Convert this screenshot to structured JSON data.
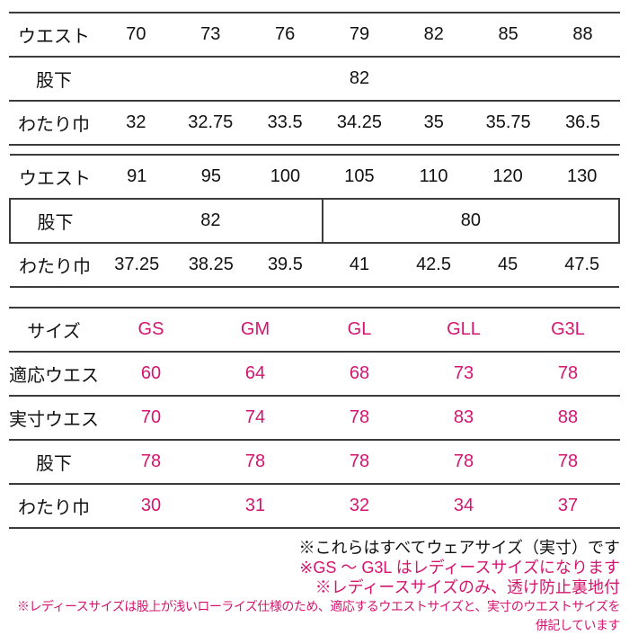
{
  "colors": {
    "accent_pink": "#d4156f",
    "text_black": "#111111",
    "table_line": "#3c3c3c",
    "background": "#ffffff"
  },
  "size_table_upper": {
    "waist_label": "ウエスト",
    "waist_values": [
      "70",
      "73",
      "76",
      "79",
      "82",
      "85",
      "88"
    ],
    "inseam_label": "股下",
    "inseam_value": "82",
    "thigh_label": "わたり巾",
    "thigh_values": [
      "32",
      "32.75",
      "33.5",
      "34.25",
      "35",
      "35.75",
      "36.5"
    ]
  },
  "size_table_mid": {
    "waist_label": "ウエスト",
    "waist_values": [
      "91",
      "95",
      "100",
      "105",
      "110",
      "120",
      "130"
    ],
    "inseam_label": "股下",
    "inseam_value_left": "82",
    "inseam_value_right": "80",
    "thigh_label": "わたり巾",
    "thigh_values": [
      "37.25",
      "38.25",
      "39.5",
      "41",
      "42.5",
      "45",
      "47.5"
    ]
  },
  "ladies_table": {
    "size_label": "サイズ",
    "size_values": [
      "GS",
      "GM",
      "GL",
      "GLL",
      "G3L"
    ],
    "fit_waist_label": "適応ウエスト",
    "fit_waist_values": [
      "60",
      "64",
      "68",
      "73",
      "78"
    ],
    "actual_waist_label": "実寸ウエスト",
    "actual_waist_values": [
      "70",
      "74",
      "78",
      "83",
      "88"
    ],
    "inseam_label": "股下",
    "inseam_values": [
      "78",
      "78",
      "78",
      "78",
      "78"
    ],
    "thigh_label": "わたり巾",
    "thigh_values": [
      "30",
      "31",
      "32",
      "34",
      "37"
    ]
  },
  "footnotes": {
    "note1": "※これらはすべてウェアサイズ（実寸）です",
    "note2": "※GS ～ G3L はレディースサイズになります",
    "note3": "※レディースサイズのみ、透け防止裏地付",
    "note4": "※レディースサイズは股上が浅いローライズ仕様のため、適応するウエストサイズと、実寸のウエストサイズを併記しています"
  }
}
